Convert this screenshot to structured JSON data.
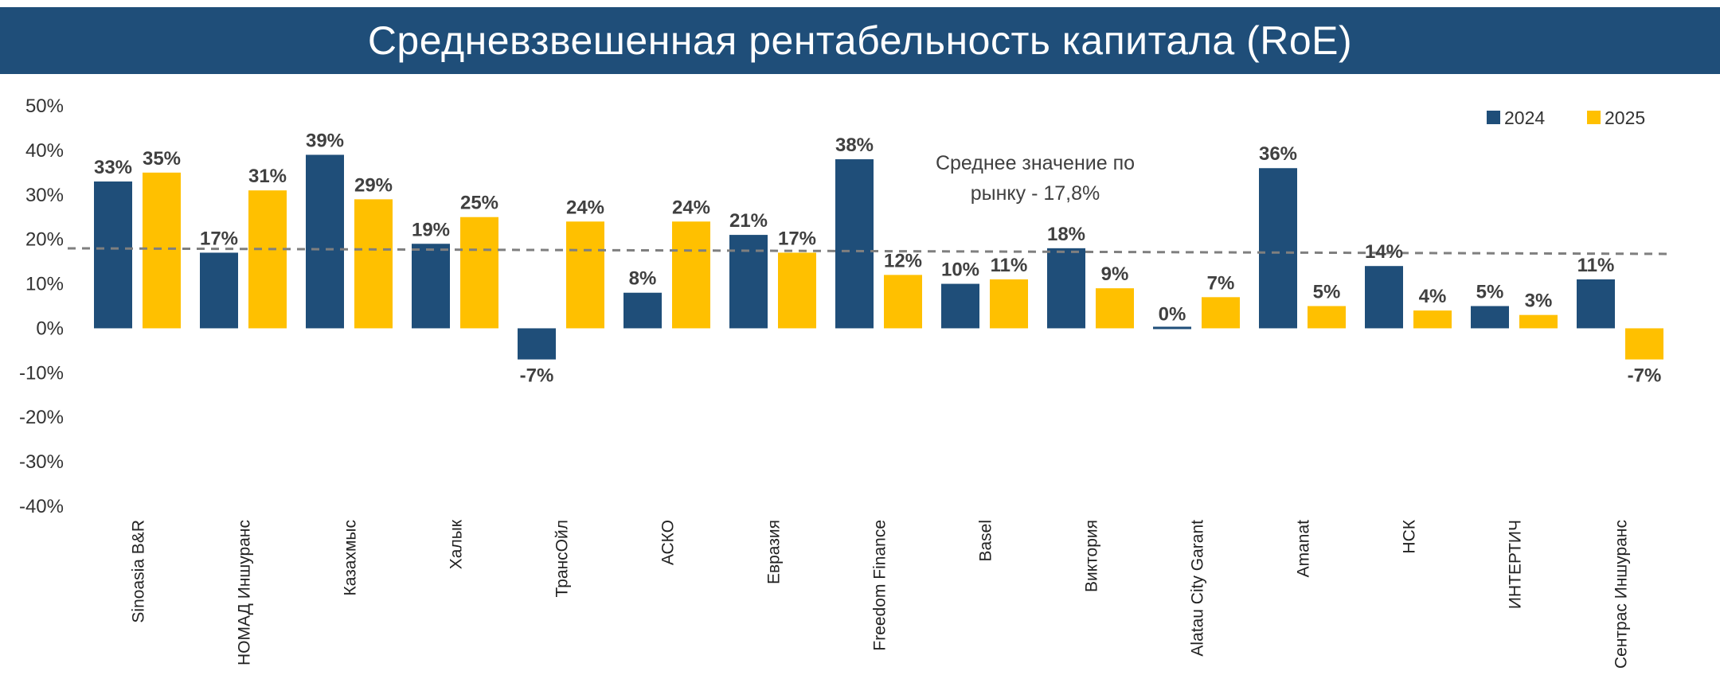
{
  "title": "Средневзвешенная рентабельность капитала (RoE)",
  "colors": {
    "header_bg": "#1f4e79",
    "s2024": "#1f4e79",
    "s2025": "#ffc000",
    "avg_line": "#7f7f7f"
  },
  "chart_data": {
    "type": "bar",
    "title": "Средневзвешенная рентабельность капитала (RoE)",
    "xlabel": "",
    "ylabel": "",
    "ylim": [
      -40,
      50
    ],
    "yticks": [
      "50%",
      "40%",
      "30%",
      "20%",
      "10%",
      "0%",
      "-10%",
      "-20%",
      "-30%",
      "-40%"
    ],
    "grid": false,
    "legend_position": "top-right",
    "categories": [
      "Sinoasia B&R",
      "НОМАД Иншуранс",
      "Казахмыс",
      "Халык",
      "ТрансОйл",
      "АСКО",
      "Евразия",
      "Freedom Finance",
      "Basel",
      "Виктория",
      "Alatau City Garant",
      "Amanat",
      "НСК",
      "ИНТЕРТИЧ",
      "Сентрас Иншуранс"
    ],
    "series": [
      {
        "name": "2024",
        "values": [
          33,
          17,
          39,
          19,
          -7,
          8,
          21,
          38,
          10,
          18,
          0,
          36,
          14,
          5,
          11
        ],
        "labels": [
          "33%",
          "17%",
          "39%",
          "19%",
          "-7%",
          "8%",
          "21%",
          "38%",
          "10%",
          "18%",
          "0%",
          "36%",
          "14%",
          "5%",
          "11%"
        ]
      },
      {
        "name": "2025",
        "values": [
          35,
          31,
          29,
          25,
          24,
          24,
          17,
          12,
          11,
          9,
          7,
          5,
          4,
          3,
          -7
        ],
        "labels": [
          "35%",
          "31%",
          "29%",
          "25%",
          "24%",
          "24%",
          "17%",
          "12%",
          "11%",
          "9%",
          "7%",
          "5%",
          "4%",
          "3%",
          "-7%"
        ]
      }
    ],
    "average_line": {
      "value": 17.8,
      "note_line1": "Среднее значение по",
      "note_line2": "рынку - 17,8%"
    }
  }
}
